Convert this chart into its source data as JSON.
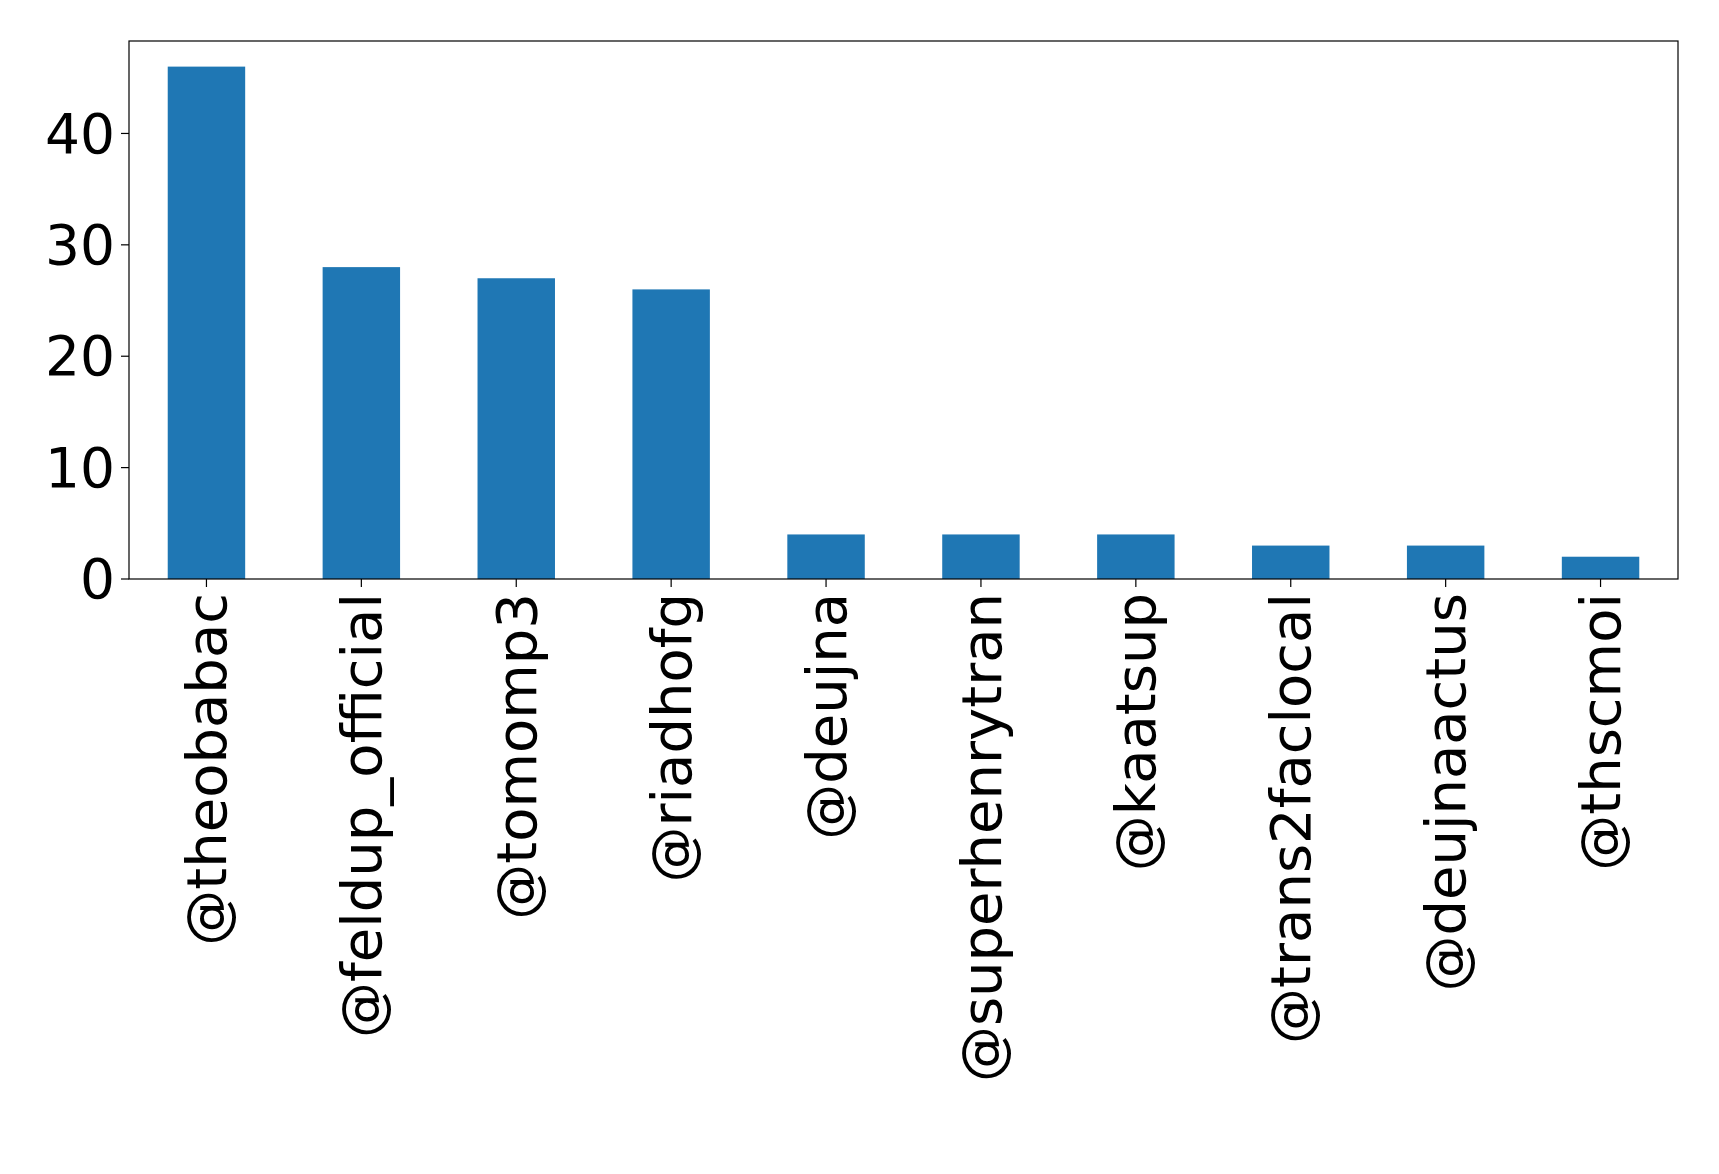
{
  "chart_data": {
    "type": "bar",
    "categories": [
      "@theobabac",
      "@feldup_official",
      "@tomomp3",
      "@riadhofg",
      "@deujna",
      "@superhenrytran",
      "@kaatsup",
      "@trans2faclocal",
      "@deujnaactus",
      "@thscmoi"
    ],
    "values": [
      46,
      28,
      27,
      26,
      4,
      4,
      4,
      3,
      3,
      2
    ],
    "color": "#1f77b4",
    "ylim": [
      0,
      48.3
    ],
    "yticks": [
      0,
      10,
      20,
      30,
      40
    ]
  }
}
